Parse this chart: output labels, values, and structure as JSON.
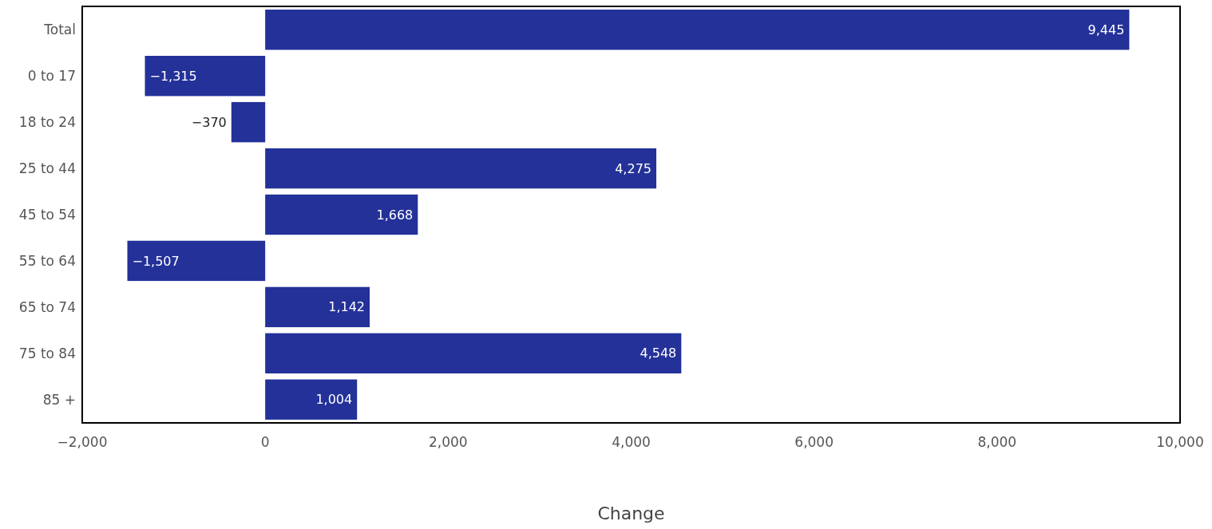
{
  "chart_data": {
    "type": "bar",
    "orientation": "horizontal",
    "xlabel": "Change",
    "categories": [
      "Total",
      "0 to 17",
      "18 to 24",
      "25 to 44",
      "45 to 54",
      "55 to 64",
      "65 to 74",
      "75 to 84",
      "85 +"
    ],
    "values": [
      9445,
      -1315,
      -370,
      4275,
      1668,
      -1507,
      1142,
      4548,
      1004
    ],
    "value_labels": [
      "9,445",
      "−1,315",
      "−370",
      "4,275",
      "1,668",
      "−1,507",
      "1,142",
      "4,548",
      "1,004"
    ],
    "color": "#233199",
    "xlim": [
      -2000,
      10000
    ],
    "xticks": [
      {
        "value": -2000,
        "label": "−2,000"
      },
      0,
      {
        "value": 2000,
        "label": "2,000"
      },
      {
        "value": 4000,
        "label": "4,000"
      },
      {
        "value": 6000,
        "label": "6,000"
      },
      {
        "value": 8000,
        "label": "8,000"
      },
      {
        "value": 10000,
        "label": "10,000"
      }
    ],
    "grid": false
  }
}
